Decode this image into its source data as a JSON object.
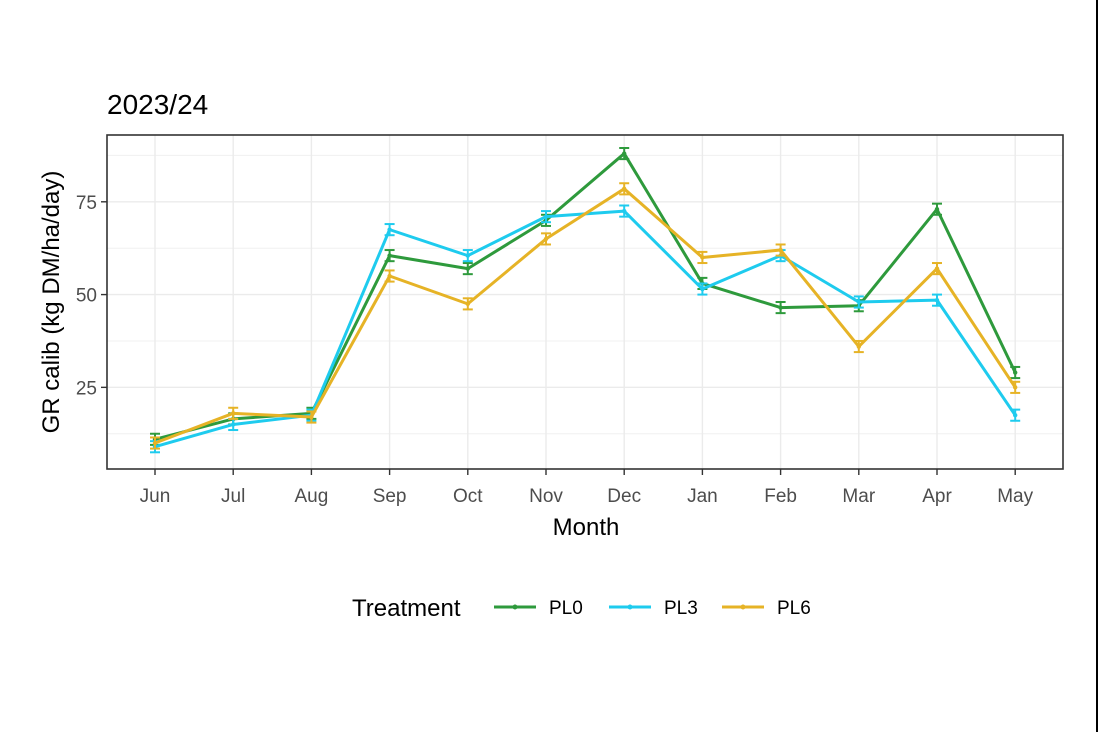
{
  "chart_data": {
    "type": "line",
    "title": "2023/24",
    "xlabel": "Month",
    "ylabel": "GR calib (kg DM/ha/day)",
    "categories": [
      "Jun",
      "Jul",
      "Aug",
      "Sep",
      "Oct",
      "Nov",
      "Dec",
      "Jan",
      "Feb",
      "Mar",
      "Apr",
      "May"
    ],
    "ylim": [
      3,
      93
    ],
    "yticks": [
      25,
      50,
      75
    ],
    "grid": true,
    "legend_title": "Treatment",
    "legend_position": "bottom",
    "series": [
      {
        "name": "PL0",
        "color": "#2e9a3c",
        "values": [
          11,
          16.5,
          18,
          60.5,
          57,
          70,
          88,
          53,
          46.5,
          47,
          73,
          29
        ],
        "errors": [
          1.5,
          1.5,
          1.5,
          1.5,
          1.5,
          1.5,
          1.5,
          1.5,
          1.5,
          1.5,
          1.5,
          1.5
        ]
      },
      {
        "name": "PL3",
        "color": "#1ecbee",
        "values": [
          9,
          15,
          17.5,
          67.5,
          60.5,
          71,
          72.5,
          51.5,
          60.5,
          48,
          48.5,
          17.5
        ],
        "errors": [
          1.5,
          1.5,
          1.5,
          1.5,
          1.5,
          1.5,
          1.5,
          1.5,
          1.5,
          1.5,
          1.5,
          1.5
        ]
      },
      {
        "name": "PL6",
        "color": "#e6b326",
        "values": [
          10,
          18,
          17,
          55,
          47.5,
          65,
          78.5,
          60,
          62,
          36,
          57,
          25
        ],
        "errors": [
          1.5,
          1.5,
          1.5,
          1.5,
          1.5,
          1.5,
          1.5,
          1.5,
          1.5,
          1.5,
          1.5,
          1.5
        ]
      }
    ]
  }
}
